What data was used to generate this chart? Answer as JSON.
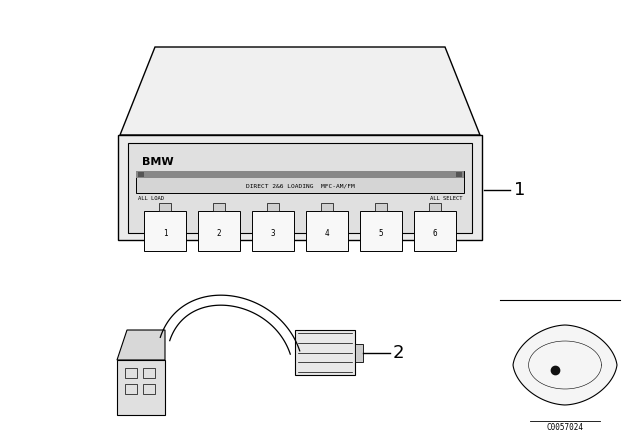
{
  "bg_color": "#ffffff",
  "line_color": "#000000",
  "line_width": 1.0,
  "cd_player": {
    "label_bmw": "BMW",
    "display_text": "DIRECT 2&6 LOADING  MFC-AM/FM",
    "label_allload": "ALL LOAD",
    "label_allselect": "ALL SELECT",
    "slot_labels": [
      "1",
      "2",
      "3",
      "4",
      "5",
      "6"
    ]
  },
  "item1_label": "1",
  "item2_label": "2",
  "car_label": "C0057024"
}
